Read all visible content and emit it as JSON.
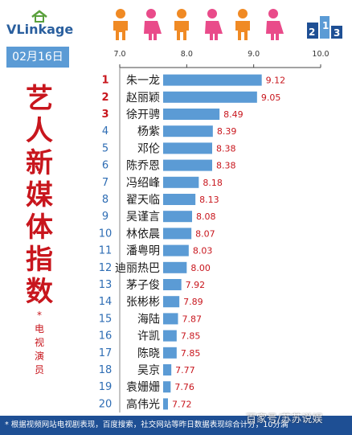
{
  "logo": {
    "text": "VLinkage"
  },
  "date": "02月16日",
  "title_chars": [
    "艺",
    "人",
    "新",
    "媒",
    "体",
    "指",
    "数"
  ],
  "subtitle_chars": [
    "*",
    "电",
    "视",
    "演",
    "员"
  ],
  "footer_text": "* 根据视频网站电视剧表现，百度搜索，社交网站等昨日数据表现综合计分，10分满",
  "watermark": "百家号/苏苏说娱",
  "colors": {
    "bar": "#5b9bd5",
    "rank_top": "#c8161d",
    "rank": "#2e6db4",
    "value": "#c8161d",
    "footer": "#1e4f94"
  },
  "chart_data": {
    "type": "bar",
    "orientation": "horizontal",
    "xlim": [
      7.0,
      10.0
    ],
    "xticks": [
      "7.0",
      "8.0",
      "9.0",
      "10.0"
    ],
    "categories": [
      "朱一龙",
      "赵丽颖",
      "徐开骋",
      "杨紫",
      "邓伦",
      "陈乔恩",
      "冯绍峰",
      "翟天临",
      "吴谨言",
      "林依晨",
      "潘粤明",
      "迪丽热巴",
      "茅子俊",
      "张彬彬",
      "海陆",
      "许凯",
      "陈晓",
      "吴京",
      "袁姗姗",
      "高伟光"
    ],
    "ranks": [
      "1",
      "2",
      "3",
      "4",
      "5",
      "6",
      "7",
      "8",
      "9",
      "10",
      "11",
      "12",
      "13",
      "14",
      "15",
      "16",
      "17",
      "18",
      "19",
      "20"
    ],
    "values": [
      9.12,
      9.05,
      8.49,
      8.39,
      8.38,
      8.38,
      8.18,
      8.13,
      8.08,
      8.07,
      8.03,
      8.0,
      7.92,
      7.89,
      7.87,
      7.85,
      7.85,
      7.77,
      7.76,
      7.72
    ],
    "value_labels": [
      "9.12",
      "9.05",
      "8.49",
      "8.39",
      "8.38",
      "8.38",
      "8.18",
      "8.13",
      "8.08",
      "8.07",
      "8.03",
      "8.00",
      "7.92",
      "7.89",
      "7.87",
      "7.85",
      "7.85",
      "7.77",
      "7.76",
      "7.72"
    ]
  }
}
